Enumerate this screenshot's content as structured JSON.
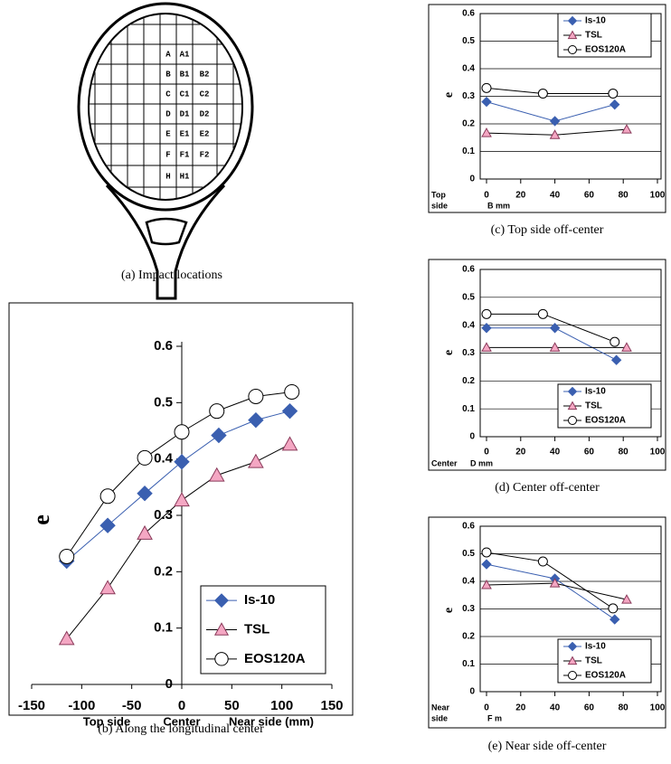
{
  "diagram": {
    "cells": [
      [
        "A",
        "A1"
      ],
      [
        "B",
        "B1",
        "B2"
      ],
      [
        "C",
        "C1",
        "C2"
      ],
      [
        "D",
        "D1",
        "D2"
      ],
      [
        "E",
        "E1",
        "E2"
      ],
      [
        "F",
        "F1",
        "F2"
      ],
      [
        "H",
        "H1"
      ]
    ],
    "caption": "(a) Impact locations"
  },
  "chart_data": [
    {
      "type": "line",
      "caption": "(b)   Along the longitudinal center",
      "ylabel": "e",
      "xlabel": [
        "Top side",
        "Center",
        "Near side (mm)"
      ],
      "xlim": [
        -150,
        150
      ],
      "xticks": [
        -150,
        -100,
        -50,
        0,
        50,
        100,
        150
      ],
      "ylim": [
        0,
        0.6
      ],
      "yticks": [
        0,
        0.1,
        0.2,
        0.3,
        0.4,
        0.5,
        0.6
      ],
      "grid": false,
      "legend": "lower right",
      "series": [
        {
          "name": "Is-10",
          "color": "#3a5fb0",
          "marker": "diamond",
          "marker_fill": "#3a5fb0",
          "x": [
            -115,
            -74,
            -37,
            0,
            37,
            74,
            108
          ],
          "values": [
            0.219,
            0.282,
            0.339,
            0.395,
            0.442,
            0.469,
            0.485
          ]
        },
        {
          "name": "TSL",
          "color": "#000000",
          "marker": "triangle",
          "marker_fill": "#f4a7c3",
          "x": [
            -115,
            -74,
            -37,
            0,
            35,
            74,
            108
          ],
          "values": [
            0.081,
            0.171,
            0.268,
            0.327,
            0.371,
            0.395,
            0.426
          ]
        },
        {
          "name": "EOS120A",
          "color": "#000000",
          "marker": "circle",
          "marker_fill": "#ffffff",
          "x": [
            -115,
            -74,
            -37,
            0,
            35,
            74,
            110
          ],
          "values": [
            0.227,
            0.334,
            0.402,
            0.448,
            0.485,
            0.511,
            0.519
          ]
        }
      ]
    },
    {
      "type": "line",
      "caption": "(c) Top side off-center",
      "ylabel": "e",
      "side_label": [
        "Top",
        "side"
      ],
      "xlabel": "B   mm",
      "xlim": [
        0,
        100
      ],
      "xticks": [
        0,
        20,
        40,
        60,
        80,
        100
      ],
      "ylim": [
        0,
        0.6
      ],
      "yticks": [
        0,
        0.1,
        0.2,
        0.3,
        0.4,
        0.5,
        0.6
      ],
      "grid": true,
      "legend": "upper right",
      "series": [
        {
          "name": "Is-10",
          "color": "#3a5fb0",
          "marker": "diamond",
          "marker_fill": "#3a5fb0",
          "x": [
            0,
            40,
            75
          ],
          "values": [
            0.28,
            0.21,
            0.27
          ]
        },
        {
          "name": "TSL",
          "color": "#000000",
          "marker": "triangle",
          "marker_fill": "#f4a7c3",
          "x": [
            0,
            40,
            82
          ],
          "values": [
            0.167,
            0.16,
            0.18
          ]
        },
        {
          "name": "EOS120A",
          "color": "#000000",
          "marker": "circle",
          "marker_fill": "#ffffff",
          "x": [
            0,
            33,
            74
          ],
          "values": [
            0.33,
            0.31,
            0.31
          ]
        }
      ]
    },
    {
      "type": "line",
      "caption": "(d) Center off-center",
      "ylabel": "e",
      "side_label": [
        "Center"
      ],
      "xlabel": "D   mm",
      "xlim": [
        0,
        100
      ],
      "xticks": [
        0,
        20,
        40,
        60,
        80,
        100
      ],
      "ylim": [
        0,
        0.6
      ],
      "yticks": [
        0,
        0.1,
        0.2,
        0.3,
        0.4,
        0.5,
        0.6
      ],
      "grid": true,
      "legend": "lower right",
      "series": [
        {
          "name": "Is-10",
          "color": "#3a5fb0",
          "marker": "diamond",
          "marker_fill": "#3a5fb0",
          "x": [
            0,
            40,
            76
          ],
          "values": [
            0.39,
            0.39,
            0.275
          ]
        },
        {
          "name": "TSL",
          "color": "#000000",
          "marker": "triangle",
          "marker_fill": "#f4a7c3",
          "x": [
            0,
            40,
            82
          ],
          "values": [
            0.32,
            0.32,
            0.32
          ]
        },
        {
          "name": "EOS120A",
          "color": "#000000",
          "marker": "circle",
          "marker_fill": "#ffffff",
          "x": [
            0,
            33,
            75
          ],
          "values": [
            0.44,
            0.44,
            0.34
          ]
        }
      ]
    },
    {
      "type": "line",
      "caption": "(e) Near side off-center",
      "ylabel": "e",
      "side_label": [
        "Near",
        "side"
      ],
      "xlabel": "F   m",
      "xlim": [
        0,
        100
      ],
      "xticks": [
        0,
        20,
        40,
        60,
        80,
        100
      ],
      "ylim": [
        0,
        0.6
      ],
      "yticks": [
        0,
        0.1,
        0.2,
        0.3,
        0.4,
        0.5,
        0.6
      ],
      "grid": true,
      "legend": "lower right",
      "series": [
        {
          "name": "Is-10",
          "color": "#3a5fb0",
          "marker": "diamond",
          "marker_fill": "#3a5fb0",
          "x": [
            0,
            40,
            75
          ],
          "values": [
            0.462,
            0.41,
            0.262
          ]
        },
        {
          "name": "TSL",
          "color": "#000000",
          "marker": "triangle",
          "marker_fill": "#f4a7c3",
          "x": [
            0,
            40,
            82
          ],
          "values": [
            0.387,
            0.393,
            0.334
          ]
        },
        {
          "name": "EOS120A",
          "color": "#000000",
          "marker": "circle",
          "marker_fill": "#ffffff",
          "x": [
            0,
            33,
            74
          ],
          "values": [
            0.505,
            0.472,
            0.302
          ]
        }
      ]
    }
  ]
}
